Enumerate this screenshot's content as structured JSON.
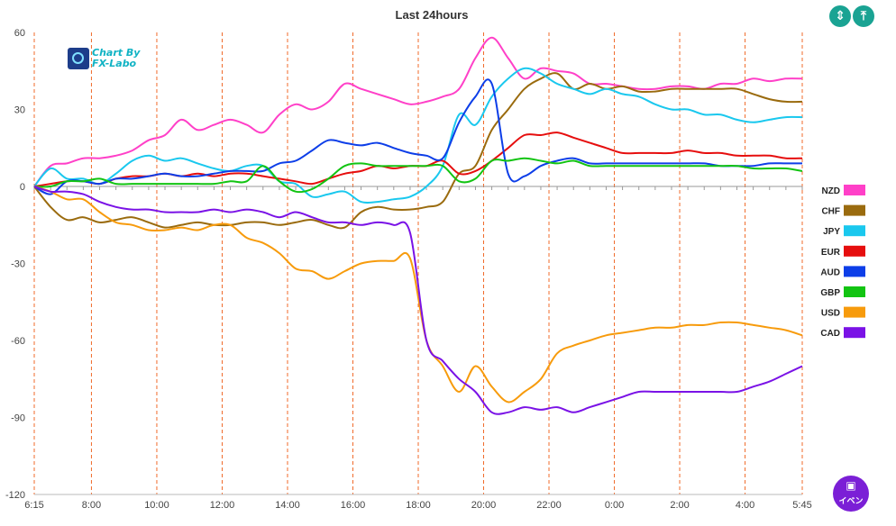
{
  "toolbar": {
    "fit_icon": "compress-vertical-icon",
    "fit_symbol": "⇕",
    "top_icon": "align-top-icon",
    "top_symbol": "⤒"
  },
  "logo": {
    "line1": "Chart By",
    "line2": "FX-Labo"
  },
  "event_button": {
    "icon": "calendar-icon",
    "symbol": "▣",
    "label": "イベン"
  },
  "colors": {
    "NZD": "#ff40c8",
    "CHF": "#9a6b0e",
    "JPY": "#1ac8ee",
    "EUR": "#e60e0e",
    "AUD": "#0d3ee8",
    "GBP": "#12c412",
    "USD": "#f79b0c",
    "CAD": "#7a12e6"
  },
  "chart_data": {
    "type": "line",
    "title": "Last 24hours",
    "xlabel": "",
    "ylabel": "",
    "x_tick_labels": [
      "6:15",
      "8:00",
      "10:00",
      "12:00",
      "14:00",
      "16:00",
      "18:00",
      "20:00",
      "22:00",
      "0:00",
      "2:00",
      "4:00",
      "5:45"
    ],
    "y_ticks": [
      60,
      30,
      0,
      -30,
      -60,
      -90,
      -120
    ],
    "ylim": [
      -120,
      60
    ],
    "x_hours": [
      0,
      0.5,
      1,
      1.5,
      2,
      2.5,
      3,
      3.5,
      4,
      4.5,
      5,
      5.5,
      6,
      6.5,
      7,
      7.5,
      8,
      8.5,
      9,
      9.5,
      10,
      10.5,
      11,
      11.5,
      12,
      12.5,
      13,
      13.5,
      14,
      14.5,
      15,
      15.5,
      16,
      16.5,
      17,
      17.5,
      18,
      18.5,
      19,
      19.5,
      20,
      20.5,
      21,
      21.5,
      22,
      22.5,
      23,
      23.5
    ],
    "vertical_grid": "dashed at each tick label",
    "legend_position": "right",
    "series": [
      {
        "name": "NZD",
        "values": [
          0,
          8,
          9,
          11,
          11,
          12,
          14,
          18,
          20,
          26,
          22,
          24,
          26,
          24,
          21,
          28,
          32,
          30,
          33,
          40,
          38,
          36,
          34,
          32,
          33,
          35,
          38,
          50,
          58,
          50,
          42,
          46,
          45,
          44,
          40,
          40,
          39,
          38,
          38,
          39,
          39,
          38,
          40,
          40,
          42,
          41,
          42,
          42
        ]
      },
      {
        "name": "CHF",
        "values": [
          0,
          -8,
          -13,
          -12,
          -14,
          -13,
          -12,
          -14,
          -16,
          -15,
          -14,
          -15,
          -15,
          -14,
          -14,
          -15,
          -14,
          -13,
          -15,
          -16,
          -10,
          -8,
          -9,
          -9,
          -8,
          -6,
          5,
          8,
          22,
          30,
          38,
          42,
          44,
          38,
          40,
          38,
          39,
          37,
          37,
          38,
          38,
          38,
          38,
          38,
          36,
          34,
          33,
          33
        ]
      },
      {
        "name": "JPY",
        "values": [
          0,
          7,
          3,
          3,
          1,
          5,
          10,
          12,
          10,
          11,
          9,
          7,
          6,
          8,
          8,
          2,
          1,
          -4,
          -3,
          -2,
          -6,
          -6,
          -5,
          -4,
          0,
          8,
          28,
          24,
          35,
          42,
          46,
          44,
          40,
          38,
          36,
          38,
          36,
          35,
          32,
          30,
          30,
          28,
          28,
          26,
          25,
          26,
          27,
          27
        ]
      },
      {
        "name": "EUR",
        "values": [
          0,
          1,
          2,
          2,
          1,
          3,
          4,
          4,
          5,
          4,
          5,
          4,
          5,
          5,
          4,
          3,
          2,
          1,
          3,
          5,
          6,
          8,
          7,
          8,
          8,
          10,
          5,
          6,
          10,
          15,
          20,
          20,
          21,
          19,
          17,
          15,
          13,
          13,
          13,
          13,
          14,
          13,
          13,
          12,
          12,
          12,
          11,
          11
        ]
      },
      {
        "name": "AUD",
        "values": [
          0,
          -3,
          2,
          2,
          1,
          3,
          3,
          4,
          5,
          4,
          4,
          5,
          6,
          6,
          6,
          9,
          10,
          14,
          18,
          17,
          16,
          17,
          15,
          13,
          12,
          11,
          25,
          35,
          40,
          5,
          4,
          8,
          10,
          11,
          9,
          9,
          9,
          9,
          9,
          9,
          9,
          9,
          8,
          8,
          8,
          9,
          9,
          9
        ]
      },
      {
        "name": "GBP",
        "values": [
          0,
          0,
          2,
          2,
          3,
          1,
          1,
          1,
          1,
          1,
          1,
          1,
          2,
          2,
          8,
          2,
          -2,
          -1,
          3,
          8,
          9,
          8,
          8,
          8,
          8,
          8,
          2,
          3,
          10,
          10,
          11,
          10,
          9,
          10,
          8,
          8,
          8,
          8,
          8,
          8,
          8,
          8,
          8,
          8,
          7,
          7,
          7,
          6
        ]
      },
      {
        "name": "USD",
        "values": [
          0,
          -2,
          -5,
          -5,
          -10,
          -14,
          -15,
          -17,
          -17,
          -16,
          -17,
          -15,
          -15,
          -20,
          -22,
          -26,
          -32,
          -33,
          -36,
          -33,
          -30,
          -29,
          -29,
          -28,
          -60,
          -70,
          -80,
          -70,
          -78,
          -84,
          -80,
          -75,
          -65,
          -62,
          -60,
          -58,
          -57,
          -56,
          -55,
          -55,
          -54,
          -54,
          -53,
          -53,
          -54,
          -55,
          -56,
          -58
        ]
      },
      {
        "name": "CAD",
        "values": [
          0,
          -2,
          -2,
          -3,
          -6,
          -8,
          -9,
          -9,
          -10,
          -10,
          -10,
          -9,
          -10,
          -9,
          -10,
          -12,
          -10,
          -12,
          -14,
          -14,
          -15,
          -14,
          -15,
          -18,
          -60,
          -68,
          -75,
          -80,
          -88,
          -88,
          -86,
          -87,
          -86,
          -88,
          -86,
          -84,
          -82,
          -80,
          -80,
          -80,
          -80,
          -80,
          -80,
          -80,
          -78,
          -76,
          -73,
          -70
        ]
      }
    ]
  }
}
